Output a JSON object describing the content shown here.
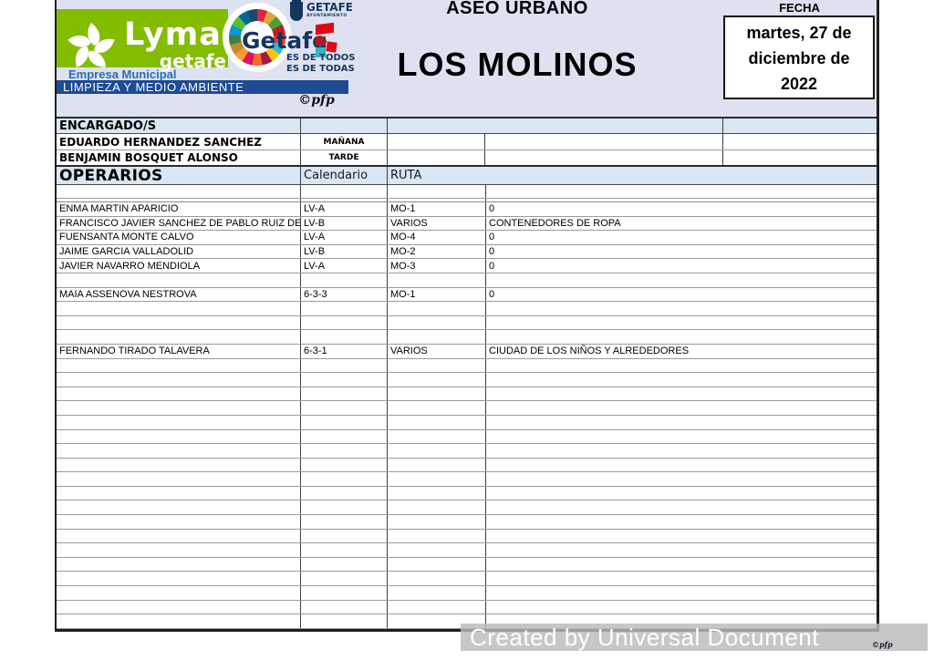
{
  "branding": {
    "lyma_text": "Lyma",
    "lyma_sub": "getafe",
    "empresa": "Empresa Municipal",
    "bar": "LIMPIEZA Y MEDIO AMBIENTE",
    "getafe_logo_text": "Getafe",
    "ayto_name": "GETAFE",
    "ayto_sub": "AYUNTAMIENTO",
    "slogan1": "ES DE TODOS",
    "slogan2": "ES DE TODAS",
    "copyright": "©pfp"
  },
  "header": {
    "section_title": "ASEO URBANO",
    "title": "LOS MOLINOS",
    "fecha_label": "FECHA",
    "date_lines": [
      "martes, 27 de",
      "diciembre de",
      "2022"
    ]
  },
  "encargados": {
    "label": "ENCARGADO/S",
    "rows": [
      {
        "name": "EDUARDO HERNANDEZ SANCHEZ",
        "shift": "MAÑANA"
      },
      {
        "name": "BENJAMIN BOSQUET ALONSO",
        "shift": "TARDE"
      }
    ]
  },
  "operarios": {
    "label": "OPERARIOS",
    "col2_label": "Calendario",
    "col3_label": "RUTA",
    "rows": [
      {
        "name": "ENMA MARTIN APARICIO",
        "calendario": "LV-A",
        "ruta": "MO-1",
        "detail": "0"
      },
      {
        "name": "FRANCISCO JAVIER SANCHEZ DE PABLO RUIZ DE I",
        "calendario": "LV-B",
        "ruta": "VARIOS",
        "detail": "CONTENEDORES DE ROPA"
      },
      {
        "name": "FUENSANTA MONTE CALVO",
        "calendario": "LV-A",
        "ruta": "MO-4",
        "detail": "0"
      },
      {
        "name": "JAIME GARCIA VALLADOLID",
        "calendario": "LV-B",
        "ruta": "MO-2",
        "detail": "0"
      },
      {
        "name": "JAVIER NAVARRO MENDIOLA",
        "calendario": "LV-A",
        "ruta": "MO-3",
        "detail": "0"
      },
      {
        "name": "",
        "calendario": "",
        "ruta": "",
        "detail": ""
      },
      {
        "name": "MAIA ASSENOVA NESTROVA",
        "calendario": "6-3-3",
        "ruta": "MO-1",
        "detail": "0"
      },
      {
        "name": "",
        "calendario": "",
        "ruta": "",
        "detail": ""
      },
      {
        "name": "",
        "calendario": "",
        "ruta": "",
        "detail": ""
      },
      {
        "name": "",
        "calendario": "",
        "ruta": "",
        "detail": ""
      },
      {
        "name": "FERNANDO TIRADO TALAVERA",
        "calendario": "6-3-1",
        "ruta": "VARIOS",
        "detail": "CIUDAD DE LOS NIÑOS Y ALREDEDORES"
      },
      {
        "name": "",
        "calendario": "",
        "ruta": "",
        "detail": ""
      },
      {
        "name": "",
        "calendario": "",
        "ruta": "",
        "detail": ""
      },
      {
        "name": "",
        "calendario": "",
        "ruta": "",
        "detail": ""
      },
      {
        "name": "",
        "calendario": "",
        "ruta": "",
        "detail": ""
      },
      {
        "name": "",
        "calendario": "",
        "ruta": "",
        "detail": ""
      },
      {
        "name": "",
        "calendario": "",
        "ruta": "",
        "detail": ""
      },
      {
        "name": "",
        "calendario": "",
        "ruta": "",
        "detail": ""
      },
      {
        "name": "",
        "calendario": "",
        "ruta": "",
        "detail": ""
      },
      {
        "name": "",
        "calendario": "",
        "ruta": "",
        "detail": ""
      },
      {
        "name": "",
        "calendario": "",
        "ruta": "",
        "detail": ""
      },
      {
        "name": "",
        "calendario": "",
        "ruta": "",
        "detail": ""
      },
      {
        "name": "",
        "calendario": "",
        "ruta": "",
        "detail": ""
      },
      {
        "name": "",
        "calendario": "",
        "ruta": "",
        "detail": ""
      },
      {
        "name": "",
        "calendario": "",
        "ruta": "",
        "detail": ""
      },
      {
        "name": "",
        "calendario": "",
        "ruta": "",
        "detail": ""
      },
      {
        "name": "",
        "calendario": "",
        "ruta": "",
        "detail": ""
      },
      {
        "name": "",
        "calendario": "",
        "ruta": "",
        "detail": ""
      },
      {
        "name": "",
        "calendario": "",
        "ruta": "",
        "detail": ""
      },
      {
        "name": "",
        "calendario": "",
        "ruta": "",
        "detail": ""
      }
    ]
  },
  "watermark": {
    "text": "Created by Universal Document Converter",
    "copyright": "©pfp"
  },
  "icons": {
    "lyma_swirl_icon": "white pinwheel swirl",
    "sdg_wheel_icon": "multicolor sdg ring",
    "getafe_crest_icon": "city coat of arms shield",
    "getafe_brand_shapes_icon": "red and cyan squares"
  },
  "colors": {
    "band": "#dee2f0",
    "header_row": "#d9e6f3",
    "green": "#84bd00",
    "navy": "#14355f",
    "blue_bar": "#1e4b94",
    "watermark_gray": "#bbbbbb"
  }
}
